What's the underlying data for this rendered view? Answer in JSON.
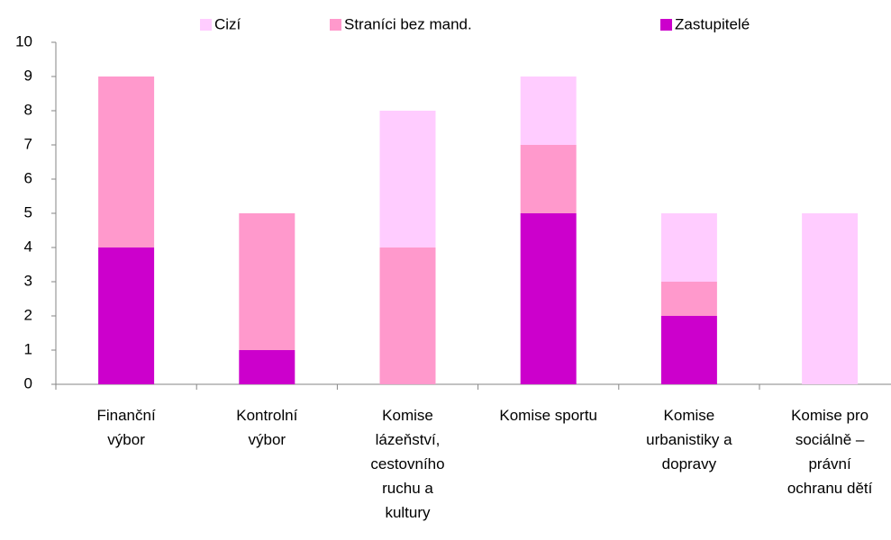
{
  "chart_data": {
    "type": "stacked_bar",
    "categories": [
      "Finanční\nvýbor",
      "Kontrolní\nvýbor",
      "Komise\nlázeňství,\ncestovního\nruchu a\nkultury",
      "Komise sportu",
      "Komise\nurbanistiky a\ndopravy",
      "Komise pro\nsociálně –\nprávní\nochranu dětí"
    ],
    "series": [
      {
        "name": "Zastupitelé",
        "color": "#cc00cc",
        "values": [
          4,
          1,
          0,
          5,
          2,
          0
        ]
      },
      {
        "name": "Straníci bez mand.",
        "color": "#ff99cc",
        "values": [
          5,
          4,
          4,
          2,
          1,
          0
        ]
      },
      {
        "name": "Cizí",
        "color": "#ffccff",
        "values": [
          0,
          0,
          4,
          2,
          2,
          5
        ]
      }
    ],
    "legend_order": [
      "Cizí",
      "Straníci bez mand.",
      "Zastupitelé"
    ],
    "legend": "top",
    "ylim": [
      0,
      10
    ],
    "yticks": [
      0,
      1,
      2,
      3,
      4,
      5,
      6,
      7,
      8,
      9,
      10
    ],
    "grid": false
  }
}
